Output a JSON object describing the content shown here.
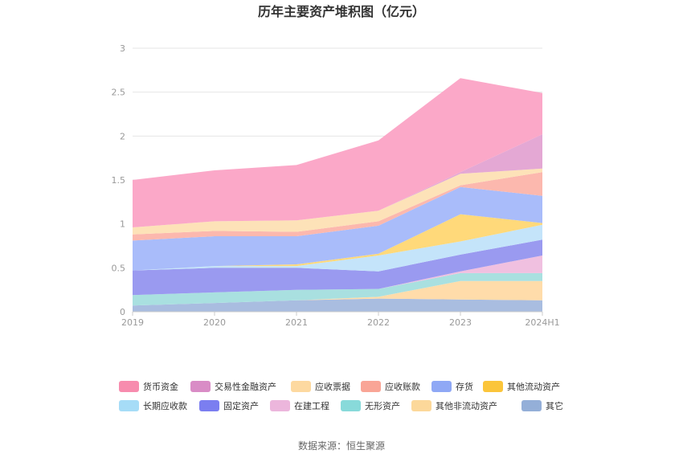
{
  "chart_data": {
    "type": "area",
    "stacked": true,
    "title": "历年主要资产堆积图（亿元）",
    "source_label": "数据来源：",
    "source_name": "恒生聚源",
    "categories": [
      "2019",
      "2020",
      "2021",
      "2022",
      "2023",
      "2024H1"
    ],
    "ylim": [
      0,
      3
    ],
    "yticks": [
      "0",
      "0.5",
      "1",
      "1.5",
      "2",
      "2.5",
      "3"
    ],
    "grid": true,
    "legend_position": "bottom",
    "series": [
      {
        "name": "其它",
        "color": "#a9bde0",
        "values": [
          0.07,
          0.1,
          0.13,
          0.15,
          0.14,
          0.13
        ]
      },
      {
        "name": "其他非流动资产",
        "color": "#ffdcaa",
        "values": [
          0.0,
          0.0,
          0.0,
          0.02,
          0.21,
          0.22
        ]
      },
      {
        "name": "无形资产",
        "color": "#a9e0e0",
        "values": [
          0.12,
          0.12,
          0.12,
          0.09,
          0.09,
          0.09
        ]
      },
      {
        "name": "在建工程",
        "color": "#f0c0e0",
        "values": [
          0.0,
          0.0,
          0.0,
          0.0,
          0.02,
          0.2
        ]
      },
      {
        "name": "固定资产",
        "color": "#9a9af0",
        "values": [
          0.28,
          0.28,
          0.25,
          0.2,
          0.19,
          0.18
        ]
      },
      {
        "name": "长期应收款",
        "color": "#c4e4fa",
        "values": [
          0.0,
          0.02,
          0.02,
          0.18,
          0.15,
          0.17
        ]
      },
      {
        "name": "其他流动资产",
        "color": "#ffd97a",
        "values": [
          0.0,
          0.0,
          0.02,
          0.02,
          0.31,
          0.02
        ]
      },
      {
        "name": "存货",
        "color": "#a9bcfa",
        "values": [
          0.34,
          0.34,
          0.32,
          0.32,
          0.31,
          0.31
        ]
      },
      {
        "name": "应收账款",
        "color": "#fcb8ae",
        "values": [
          0.07,
          0.06,
          0.05,
          0.05,
          0.02,
          0.27
        ]
      },
      {
        "name": "应收票据",
        "color": "#fde2b8",
        "values": [
          0.08,
          0.11,
          0.13,
          0.12,
          0.13,
          0.04
        ]
      },
      {
        "name": "交易性金融资产",
        "color": "#e4a8d4",
        "values": [
          0.0,
          0.0,
          0.0,
          0.0,
          0.02,
          0.39
        ]
      },
      {
        "name": "货币资金",
        "color": "#fba8c8",
        "values": [
          0.54,
          0.58,
          0.63,
          0.8,
          1.07,
          0.47
        ]
      }
    ],
    "legend_order": [
      "货币资金",
      "交易性金融资产",
      "应收票据",
      "应收账款",
      "存货",
      "其他流动资产",
      "长期应收款",
      "固定资产",
      "在建工程",
      "无形资产",
      "其他非流动资产",
      "其它"
    ],
    "legend_colors": {
      "货币资金": "#f78cae",
      "交易性金融资产": "#d98cc6",
      "应收票据": "#fdd9a0",
      "应收账款": "#f9a596",
      "存货": "#8fa8f5",
      "其他流动资产": "#fbc53a",
      "长期应收款": "#a6dcf7",
      "固定资产": "#7b7ef0",
      "在建工程": "#ecb6dc",
      "无形资产": "#88dada",
      "其他非流动资产": "#fcd89a",
      "其它": "#94afd8"
    }
  }
}
